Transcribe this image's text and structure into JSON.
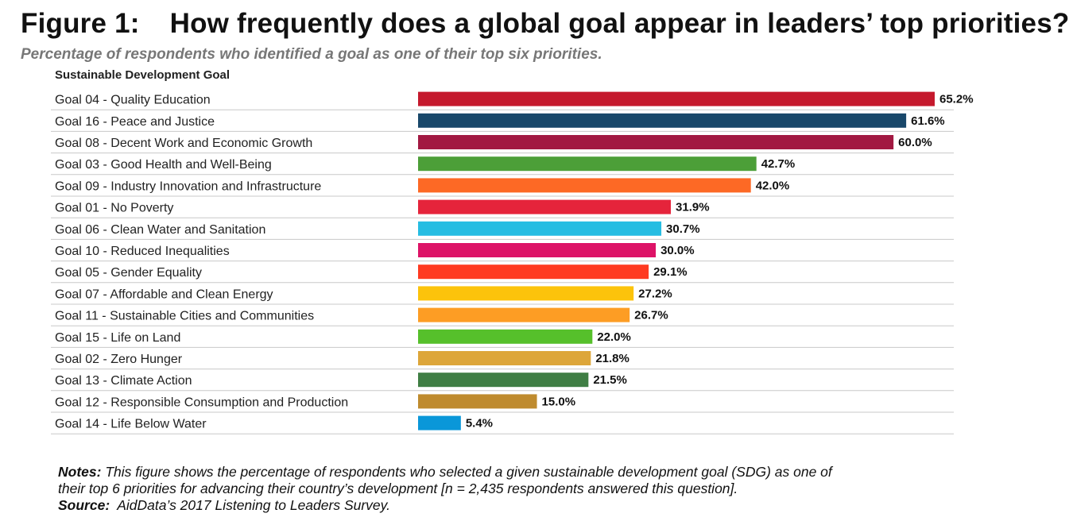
{
  "figure": {
    "label": "Figure 1:",
    "title": "How frequently does a global goal appear in leaders’ top priorities?",
    "subtitle": "Percentage of respondents who identified a goal as one of their top six priorities.",
    "column_header": "Sustainable Development Goal"
  },
  "chart_data": {
    "type": "bar",
    "orientation": "horizontal",
    "categories": [
      "Goal 04 - Quality Education",
      "Goal 16 - Peace and Justice",
      "Goal 08 - Decent Work and Economic Growth",
      "Goal 03 - Good Health and Well-Being",
      "Goal 09 - Industry Innovation and Infrastructure",
      "Goal 01 - No Poverty",
      "Goal 06 - Clean Water and Sanitation",
      "Goal 10 - Reduced Inequalities",
      "Goal 05 - Gender Equality",
      "Goal 07 - Affordable and Clean Energy",
      "Goal 11 - Sustainable Cities and Communities",
      "Goal 15 - Life on Land",
      "Goal 02 - Zero Hunger",
      "Goal 13 - Climate Action",
      "Goal 12 - Responsible Consumption and Production",
      "Goal 14 - Life Below Water"
    ],
    "values": [
      65.2,
      61.6,
      60.0,
      42.7,
      42.0,
      31.9,
      30.7,
      30.0,
      29.1,
      27.2,
      26.7,
      22.0,
      21.8,
      21.5,
      15.0,
      5.4
    ],
    "value_labels": [
      "65.2%",
      "61.6%",
      "60.0%",
      "42.7%",
      "42.0%",
      "31.9%",
      "30.7%",
      "30.0%",
      "29.1%",
      "27.2%",
      "26.7%",
      "22.0%",
      "21.8%",
      "21.5%",
      "15.0%",
      "5.4%"
    ],
    "colors": [
      "#C5192D",
      "#19486A",
      "#A21942",
      "#4C9F38",
      "#FD6925",
      "#E5243B",
      "#26BDE2",
      "#DD1367",
      "#FF3A21",
      "#FCC30B",
      "#FD9D24",
      "#56C02B",
      "#DDA63A",
      "#3F7E44",
      "#BF8B2E",
      "#0A97D9"
    ],
    "xlim": [
      0,
      100
    ],
    "grid": false,
    "legend": "none"
  },
  "notes": {
    "notes_label": "Notes:",
    "notes_line1": "This figure shows the percentage of respondents who selected a given sustainable development goal (SDG) as one of",
    "notes_line2": "their top 6 priorities for advancing their country’s development [n = 2,435 respondents answered this question].",
    "source_label": "Source:",
    "source_text": "AidData’s 2017 Listening to Leaders Survey."
  }
}
